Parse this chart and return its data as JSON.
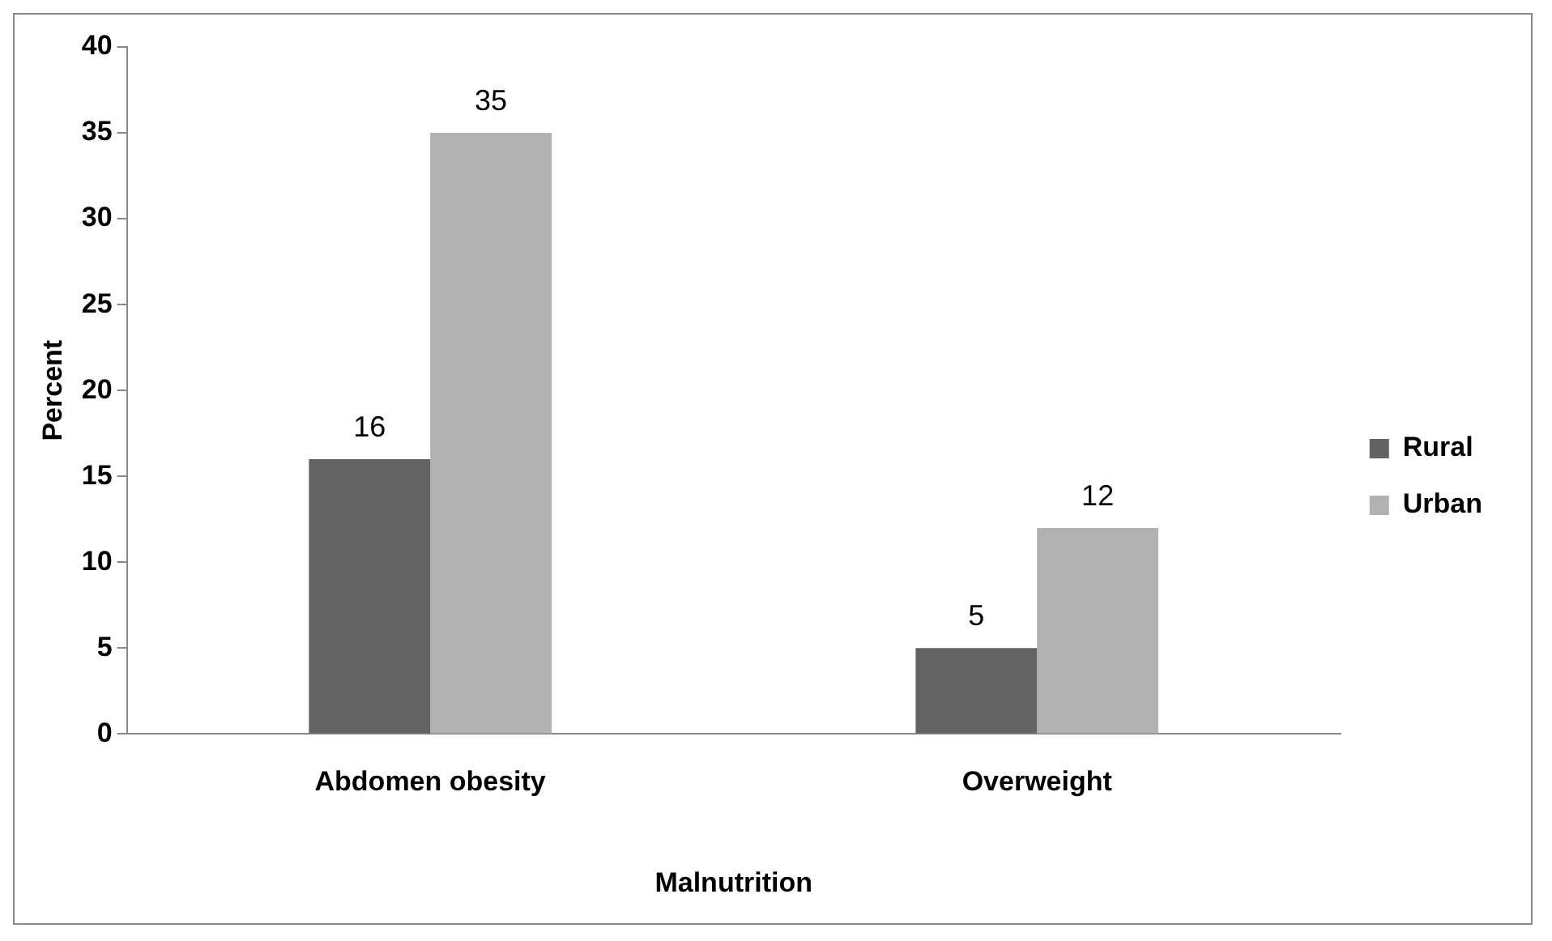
{
  "chart_data": {
    "type": "bar",
    "xlabel": "Malnutrition",
    "ylabel": "Percent",
    "categories": [
      "Abdomen obesity",
      "Overweight"
    ],
    "series": [
      {
        "name": "Rural",
        "color": "#636363",
        "values": [
          16,
          5
        ]
      },
      {
        "name": "Urban",
        "color": "#b2b2b2",
        "values": [
          35,
          12
        ]
      }
    ],
    "ylim": [
      0,
      40
    ],
    "yticks": [
      0,
      5,
      10,
      15,
      20,
      25,
      30,
      35,
      40
    ],
    "data_labels": true,
    "legend": "right"
  }
}
